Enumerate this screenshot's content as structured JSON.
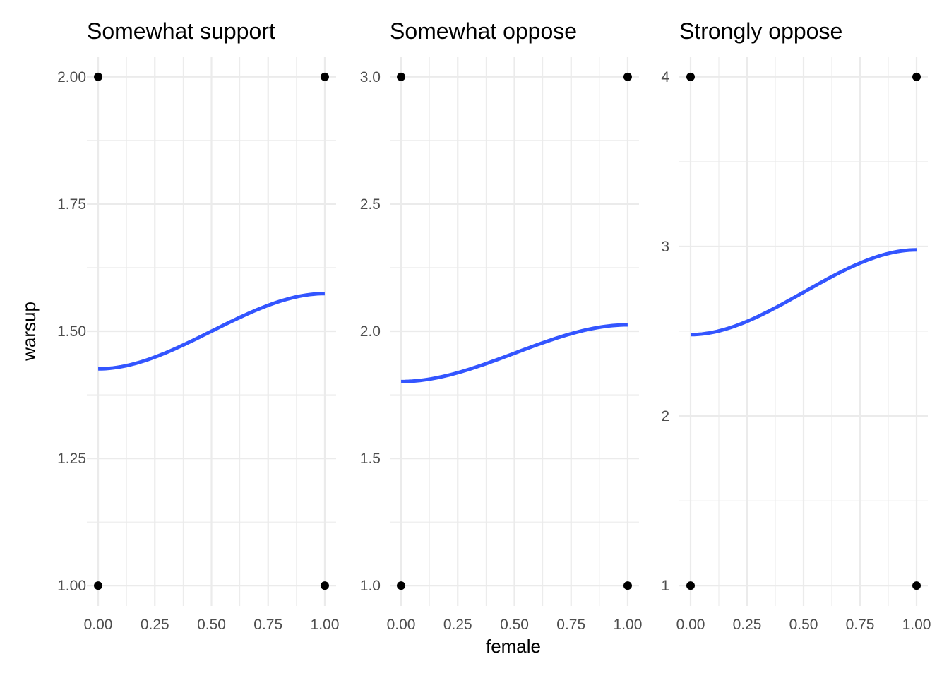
{
  "chart_data": {
    "type": "facet-line-scatter",
    "xlabel": "female",
    "ylabel": "warsup",
    "colors": {
      "curve": "#3355ff",
      "points": "#000000",
      "grid": "#ebebeb"
    },
    "x_ticks": [
      "0.00",
      "0.25",
      "0.50",
      "0.75",
      "1.00"
    ],
    "x_tick_values": [
      0,
      0.25,
      0.5,
      0.75,
      1
    ],
    "xlim": [
      -0.05,
      1.05
    ],
    "grid": true,
    "panels": [
      {
        "title": "Somewhat support",
        "ylim": [
          0.96,
          2.04
        ],
        "y_ticks": [
          "1.00",
          "1.25",
          "1.50",
          "1.75",
          "2.00"
        ],
        "y_tick_values": [
          1,
          1.25,
          1.5,
          1.75,
          2
        ],
        "y_minor": [
          1.125,
          1.375,
          1.625,
          1.875
        ],
        "points": [
          [
            0,
            1
          ],
          [
            0,
            2
          ],
          [
            1,
            1
          ],
          [
            1,
            2
          ]
        ],
        "curve": {
          "x0": 0,
          "x1": 1,
          "y0": 1.426,
          "y1": 1.574
        }
      },
      {
        "title": "Somewhat oppose",
        "ylim": [
          0.92,
          3.08
        ],
        "y_ticks": [
          "1.0",
          "1.5",
          "2.0",
          "2.5",
          "3.0"
        ],
        "y_tick_values": [
          1,
          1.5,
          2,
          2.5,
          3
        ],
        "y_minor": [
          1.25,
          1.75,
          2.25,
          2.75
        ],
        "points": [
          [
            0,
            1
          ],
          [
            0,
            3
          ],
          [
            1,
            1
          ],
          [
            1,
            3
          ]
        ],
        "curve": {
          "x0": 0,
          "x1": 1,
          "y0": 1.802,
          "y1": 2.025
        }
      },
      {
        "title": "Strongly oppose",
        "ylim": [
          0.88,
          4.12
        ],
        "y_ticks": [
          "1",
          "2",
          "3",
          "4"
        ],
        "y_tick_values": [
          1,
          2,
          3,
          4
        ],
        "y_minor": [
          1.5,
          2.5,
          3.5
        ],
        "points": [
          [
            0,
            1
          ],
          [
            0,
            4
          ],
          [
            1,
            1
          ],
          [
            1,
            4
          ]
        ],
        "curve": {
          "x0": 0,
          "x1": 1,
          "y0": 2.48,
          "y1": 2.98
        }
      }
    ]
  }
}
